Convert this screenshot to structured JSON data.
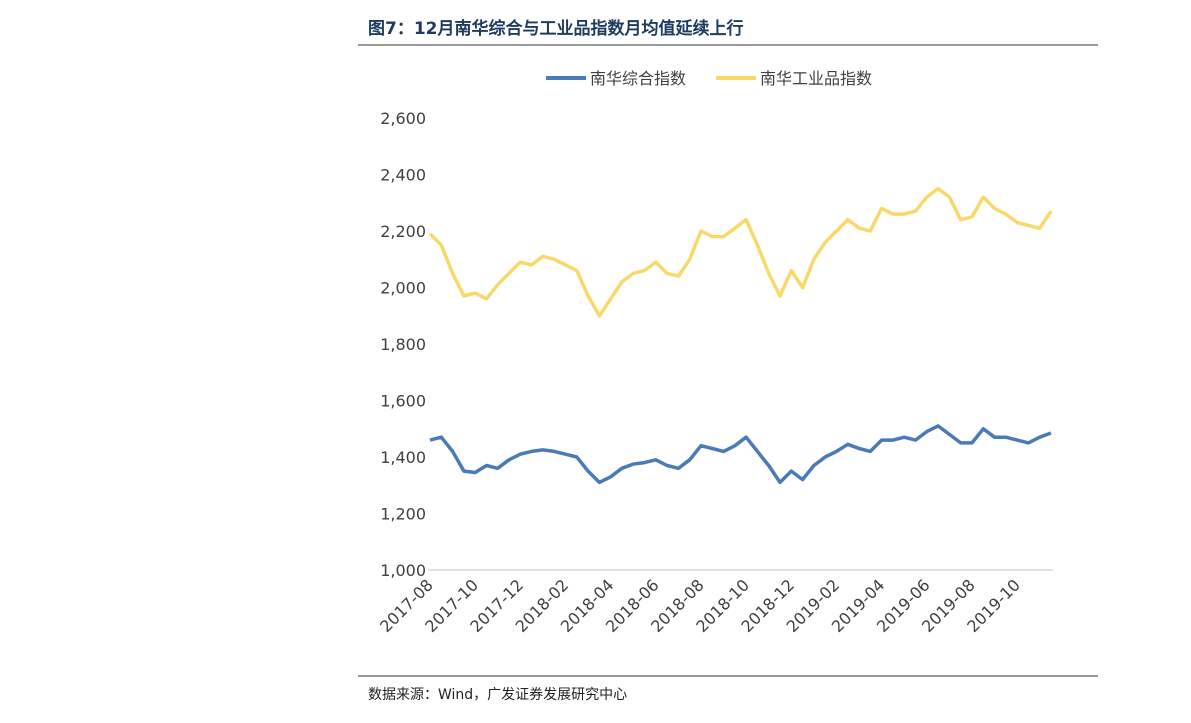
{
  "chart_data": {
    "type": "line",
    "title": "图7：12月南华综合与工业品指数月均值延续上行",
    "source": "数据来源：Wind，广发证券发展研究中心",
    "categories": [
      "2017-08",
      null,
      null,
      null,
      "2017-10",
      null,
      null,
      null,
      "2017-12",
      null,
      null,
      null,
      "2018-02",
      null,
      null,
      null,
      "2018-04",
      null,
      null,
      null,
      "2018-06",
      null,
      null,
      null,
      "2018-08",
      null,
      null,
      null,
      "2018-10",
      null,
      null,
      null,
      "2018-12",
      null,
      null,
      null,
      "2019-02",
      null,
      null,
      null,
      "2019-04",
      null,
      null,
      null,
      "2019-06",
      null,
      null,
      null,
      "2019-08",
      null,
      null,
      null,
      "2019-10",
      null,
      null,
      null
    ],
    "series": [
      {
        "name": "南华综合指数",
        "color": "#4a7ab8",
        "values": [
          1460,
          1470,
          1420,
          1350,
          1345,
          1370,
          1360,
          1390,
          1410,
          1420,
          1425,
          1420,
          1410,
          1400,
          1350,
          1310,
          1330,
          1360,
          1375,
          1380,
          1390,
          1370,
          1360,
          1390,
          1440,
          1430,
          1420,
          1440,
          1470,
          1420,
          1370,
          1310,
          1350,
          1320,
          1370,
          1400,
          1420,
          1445,
          1430,
          1420,
          1460,
          1460,
          1470,
          1460,
          1490,
          1510,
          1480,
          1450,
          1450,
          1500,
          1470,
          1470,
          1460,
          1450,
          1470,
          1485
        ]
      },
      {
        "name": "南华工业品指数",
        "color": "#f7d96a",
        "values": [
          2190,
          2150,
          2050,
          1970,
          1980,
          1960,
          2010,
          2050,
          2090,
          2080,
          2110,
          2100,
          2080,
          2060,
          1970,
          1900,
          1960,
          2020,
          2050,
          2060,
          2090,
          2050,
          2040,
          2100,
          2200,
          2180,
          2180,
          2210,
          2240,
          2150,
          2050,
          1970,
          2060,
          2000,
          2100,
          2160,
          2200,
          2240,
          2210,
          2200,
          2280,
          2260,
          2260,
          2270,
          2320,
          2350,
          2320,
          2240,
          2250,
          2320,
          2280,
          2260,
          2230,
          2220,
          2210,
          2270
        ]
      }
    ],
    "ylim": [
      1000,
      2600
    ],
    "yticks": [
      {
        "value": 1000,
        "label": "1,000"
      },
      {
        "value": 1200,
        "label": "1,200"
      },
      {
        "value": 1400,
        "label": "1,400"
      },
      {
        "value": 1600,
        "label": "1,600"
      },
      {
        "value": 1800,
        "label": "1,800"
      },
      {
        "value": 2000,
        "label": "2,000"
      },
      {
        "value": 2200,
        "label": "2,200"
      },
      {
        "value": 2400,
        "label": "2,400"
      },
      {
        "value": 2600,
        "label": "2,600"
      }
    ],
    "grid": false,
    "legend": "top"
  }
}
